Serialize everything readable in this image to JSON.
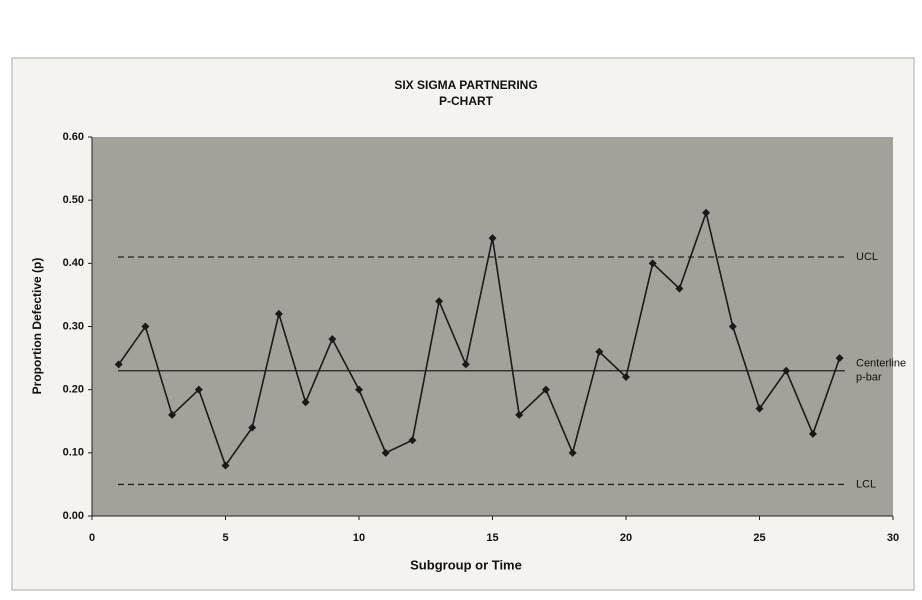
{
  "chart_data": {
    "type": "line",
    "title": [
      "SIX SIGMA PARTNERING",
      "P-CHART"
    ],
    "xlabel": "Subgroup or Time",
    "ylabel": "Proportion Defective (p)",
    "x": [
      1,
      2,
      3,
      4,
      5,
      6,
      7,
      8,
      9,
      10,
      11,
      12,
      13,
      14,
      15,
      16,
      17,
      18,
      19,
      20,
      21,
      22,
      23,
      24,
      25,
      26,
      27,
      28
    ],
    "values": [
      0.24,
      0.3,
      0.16,
      0.2,
      0.08,
      0.14,
      0.32,
      0.18,
      0.28,
      0.2,
      0.1,
      0.12,
      0.34,
      0.24,
      0.44,
      0.16,
      0.2,
      0.1,
      0.26,
      0.22,
      0.4,
      0.36,
      0.48,
      0.3,
      0.17,
      0.23,
      0.13,
      0.25
    ],
    "color": "#1a1a1a",
    "xlim": [
      0,
      30
    ],
    "xticks": [
      0,
      5,
      10,
      15,
      20,
      25,
      30
    ],
    "ylim": [
      0,
      0.6
    ],
    "yticks": [
      {
        "value": 0,
        "label": "0.00"
      },
      {
        "value": 0.1,
        "label": "0.10"
      },
      {
        "value": 0.2,
        "label": "0.20"
      },
      {
        "value": 0.3,
        "label": "0.30"
      },
      {
        "value": 0.4,
        "label": "0.40"
      },
      {
        "value": 0.5,
        "label": "0.50"
      },
      {
        "value": 0.6,
        "label": "0.60"
      }
    ],
    "reference_lines": [
      {
        "label": [
          "UCL"
        ],
        "value": 0.41,
        "style": "dashed"
      },
      {
        "label": [
          "Centerline",
          "p-bar"
        ],
        "value": 0.23,
        "style": "solid"
      },
      {
        "label": [
          "LCL"
        ],
        "value": 0.05,
        "style": "dashed"
      }
    ]
  }
}
